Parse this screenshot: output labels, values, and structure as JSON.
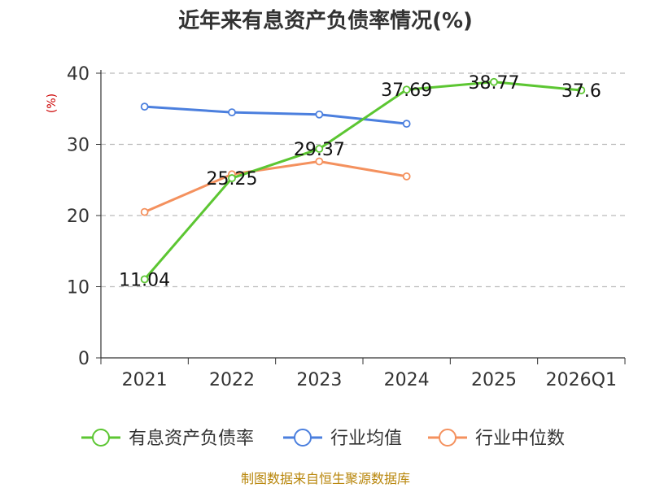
{
  "chart_data": {
    "type": "line",
    "title": "近年来有息资产负债率情况(%)",
    "ylabel": "(%)",
    "categories": [
      "2021",
      "2022",
      "2023",
      "2024",
      "2025",
      "2026Q1"
    ],
    "ylim": [
      0,
      40
    ],
    "yticks": [
      0,
      10,
      20,
      30,
      40
    ],
    "grid": true,
    "legend_position": "bottom",
    "series": [
      {
        "name": "有息资产负债率",
        "color": "#5cc632",
        "values": [
          11.04,
          25.25,
          29.37,
          37.69,
          38.77,
          37.6
        ],
        "labels": [
          "11.04",
          "25.25",
          "29.37",
          "37.69",
          "38.77",
          "37.6"
        ]
      },
      {
        "name": "行业均值",
        "color": "#4b7fde",
        "values": [
          35.3,
          34.5,
          34.2,
          32.9,
          null,
          null
        ]
      },
      {
        "name": "行业中位数",
        "color": "#f4915e",
        "values": [
          20.5,
          25.8,
          27.6,
          25.5,
          null,
          null
        ]
      }
    ],
    "source": "制图数据来自恒生聚源数据库"
  }
}
